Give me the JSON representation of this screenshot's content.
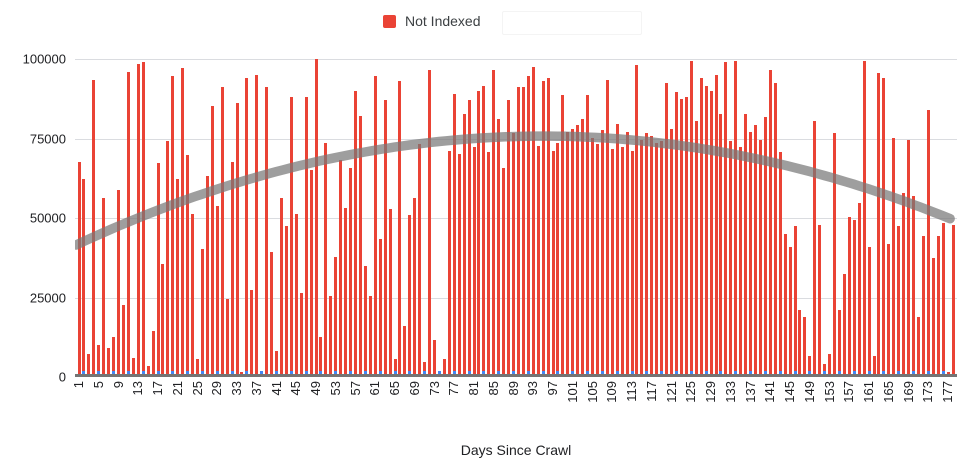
{
  "legend": {
    "label": "Not Indexed"
  },
  "colors": {
    "bar": "#ea4335",
    "trendline": "rgba(121,121,121,0.72)",
    "blue_tick": "#4285f4",
    "gridline": "#dadce0",
    "baseline": "#747474",
    "label_text": "#202124"
  },
  "chart_data": {
    "type": "bar",
    "title": "",
    "xlabel": "Days Since Crawl",
    "ylabel": "",
    "ylim": [
      0,
      100000
    ],
    "grid": true,
    "legend_position": "top",
    "x_start": 1,
    "x_step": 1,
    "y_tick_labels": [
      "100000",
      "75000",
      "50000",
      "25000",
      "0"
    ],
    "x_tick_labels": [
      "1",
      "5",
      "9",
      "13",
      "17",
      "21",
      "25",
      "29",
      "33",
      "37",
      "41",
      "45",
      "49",
      "53",
      "57",
      "61",
      "65",
      "69",
      "73",
      "77",
      "81",
      "85",
      "89",
      "93",
      "97",
      "101",
      "105",
      "109",
      "113",
      "117",
      "121",
      "125",
      "129",
      "133",
      "137",
      "141",
      "145",
      "149",
      "153",
      "157",
      "161",
      "165",
      "169",
      "173",
      "177"
    ],
    "series": [
      {
        "name": "Not Indexed",
        "values": [
          67500,
          62000,
          6500,
          93500,
          9500,
          56000,
          8500,
          12000,
          58500,
          22000,
          96000,
          5500,
          98500,
          99000,
          3000,
          14000,
          67000,
          35000,
          74000,
          94500,
          62000,
          97000,
          69500,
          51000,
          5000,
          40000,
          63000,
          85000,
          53500,
          91000,
          24000,
          67500,
          86000,
          1000,
          94000,
          27000,
          95000,
          1000,
          91000,
          39000,
          7500,
          56000,
          47000,
          88000,
          51000,
          26000,
          88000,
          65000,
          100000,
          12000,
          73500,
          25000,
          37500,
          68000,
          53000,
          65500,
          90000,
          82000,
          34500,
          25000,
          94500,
          43000,
          87000,
          52500,
          5000,
          93000,
          15500,
          50500,
          56000,
          73000,
          4000,
          96500,
          11000,
          1000,
          5000,
          71000,
          89000,
          70000,
          82500,
          87000,
          72000,
          90000,
          91500,
          70500,
          96500,
          81000,
          65500,
          87000,
          76500,
          91000,
          91000,
          94500,
          97500,
          72500,
          93000,
          94000,
          71000,
          73500,
          88500,
          77000,
          78000,
          79000,
          81000,
          88500,
          75000,
          73000,
          77500,
          93500,
          71500,
          79500,
          72000,
          77000,
          71000,
          98000,
          74500,
          76500,
          75500,
          73500,
          74000,
          92500,
          78000,
          89500,
          87500,
          88000,
          99500,
          80500,
          94000,
          91500,
          90000,
          95000,
          82500,
          99000,
          74000,
          99500,
          72000,
          82500,
          77000,
          79000,
          74500,
          81500,
          96500,
          92500,
          70500,
          44500,
          40500,
          47000,
          20500,
          18500,
          6000,
          80500,
          47500,
          3500,
          6500,
          76500,
          20500,
          32000,
          50000,
          49000,
          54500,
          99500,
          40500,
          6000,
          95500,
          94000,
          41500,
          75000,
          47000,
          57500,
          74500,
          56500,
          18500,
          44000,
          84000,
          37000,
          44000,
          48000,
          1000,
          47500
        ]
      }
    ],
    "trendline": {
      "type": "polynomial",
      "peak_day": 95,
      "peak_value": 75600,
      "a": -3.85,
      "start_value": 41600,
      "end_value": 48700
    },
    "blue_baseline_ticks": {
      "start_day": 2,
      "every": 3,
      "approx_value": 800
    }
  }
}
